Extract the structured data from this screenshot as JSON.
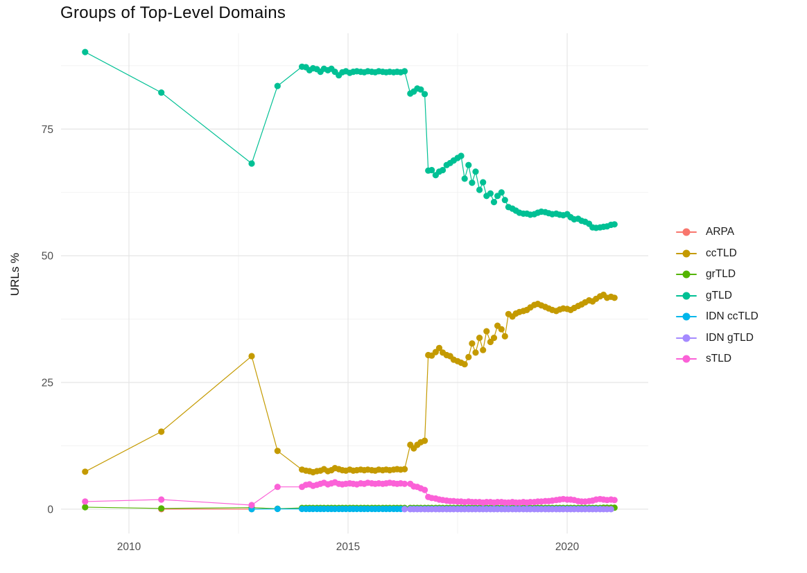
{
  "title": "Groups of Top-Level Domains",
  "chart_data": {
    "type": "line",
    "title": "Groups of Top-Level Domains",
    "xlabel": "",
    "ylabel": "URLs %",
    "xlim": [
      2008.45,
      2021.85
    ],
    "ylim": [
      -4.8,
      93.9
    ],
    "x_ticks": [
      {
        "v": 2010,
        "label": "2010"
      },
      {
        "v": 2015,
        "label": "2015"
      },
      {
        "v": 2020,
        "label": "2020"
      }
    ],
    "y_ticks": [
      {
        "v": 0,
        "label": "0"
      },
      {
        "v": 25,
        "label": "25"
      },
      {
        "v": 50,
        "label": "50"
      },
      {
        "v": 75,
        "label": "75"
      }
    ],
    "x_minor_ticks": [
      2012.5,
      2017.5
    ],
    "y_minor_ticks": [
      12.5,
      37.5,
      62.5,
      87.5
    ],
    "grid": "major+minor",
    "legend_position": "right",
    "x_common": [
      2009.0,
      2010.74,
      2012.8,
      2013.39,
      2013.95,
      2014.04,
      2014.12,
      2014.2,
      2014.29,
      2014.37,
      2014.45,
      2014.54,
      2014.62,
      2014.7,
      2014.79,
      2014.87,
      2014.95,
      2015.04,
      2015.12,
      2015.2,
      2015.29,
      2015.37,
      2015.45,
      2015.54,
      2015.62,
      2015.7,
      2015.79,
      2015.87,
      2015.95,
      2016.04,
      2016.12,
      2016.2,
      2016.29,
      2016.42,
      2016.5,
      2016.58,
      2016.66,
      2016.75,
      2016.83,
      2016.91,
      2017.0,
      2017.08,
      2017.16,
      2017.25,
      2017.33,
      2017.41,
      2017.5,
      2017.58,
      2017.66,
      2017.75,
      2017.83,
      2017.91,
      2018.0,
      2018.08,
      2018.16,
      2018.25,
      2018.33,
      2018.41,
      2018.5,
      2018.58,
      2018.66,
      2018.75,
      2018.83,
      2018.91,
      2019.0,
      2019.08,
      2019.16,
      2019.25,
      2019.33,
      2019.41,
      2019.5,
      2019.58,
      2019.66,
      2019.75,
      2019.83,
      2019.91,
      2020.0,
      2020.08,
      2020.16,
      2020.25,
      2020.33,
      2020.41,
      2020.5,
      2020.58,
      2020.66,
      2020.75,
      2020.83,
      2020.91,
      2021.0,
      2021.08
    ],
    "series": [
      {
        "name": "ARPA",
        "color": "#F8766D",
        "start_index": 1,
        "y": [
          0.0,
          0.0
        ]
      },
      {
        "name": "ccTLD",
        "color": "#C49A00",
        "start_index": 0,
        "y": [
          7.4,
          15.3,
          30.2,
          11.5,
          7.8,
          7.6,
          7.5,
          7.3,
          7.5,
          7.6,
          7.9,
          7.5,
          7.7,
          8.1,
          7.9,
          7.7,
          7.6,
          7.8,
          7.6,
          7.7,
          7.8,
          7.7,
          7.8,
          7.7,
          7.6,
          7.8,
          7.7,
          7.8,
          7.7,
          7.8,
          7.9,
          7.8,
          7.9,
          12.7,
          12.0,
          12.7,
          13.2,
          13.5,
          30.4,
          30.3,
          31.0,
          31.8,
          30.9,
          30.4,
          30.2,
          29.5,
          29.2,
          28.9,
          28.6,
          30.0,
          32.7,
          30.9,
          33.8,
          31.4,
          35.1,
          33.0,
          33.8,
          36.2,
          35.5,
          34.1,
          38.5,
          38.0,
          38.6,
          38.9,
          39.1,
          39.3,
          39.8,
          40.3,
          40.5,
          40.2,
          39.9,
          39.6,
          39.3,
          39.1,
          39.4,
          39.6,
          39.5,
          39.3,
          39.7,
          40.1,
          40.4,
          40.8,
          41.2,
          41.0,
          41.5,
          42.0,
          42.3,
          41.7,
          41.9,
          41.7
        ]
      },
      {
        "name": "grTLD",
        "color": "#53B400",
        "start_index": 0,
        "y": [
          0.4,
          0.15,
          0.3,
          0.1,
          0.25,
          0.25,
          0.25,
          0.25,
          0.25,
          0.25,
          0.25,
          0.25,
          0.25,
          0.25,
          0.25,
          0.25,
          0.25,
          0.25,
          0.25,
          0.25,
          0.25,
          0.25,
          0.25,
          0.25,
          0.25,
          0.25,
          0.25,
          0.25,
          0.25,
          0.25,
          0.25,
          0.25,
          0.25,
          0.25,
          0.25,
          0.25,
          0.25,
          0.25,
          0.25,
          0.25,
          0.25,
          0.25,
          0.25,
          0.25,
          0.25,
          0.25,
          0.25,
          0.25,
          0.25,
          0.25,
          0.25,
          0.25,
          0.25,
          0.25,
          0.25,
          0.25,
          0.25,
          0.25,
          0.25,
          0.25,
          0.25,
          0.25,
          0.25,
          0.25,
          0.25,
          0.25,
          0.25,
          0.25,
          0.25,
          0.25,
          0.25,
          0.25,
          0.25,
          0.25,
          0.25,
          0.25,
          0.25,
          0.25,
          0.25,
          0.25,
          0.25,
          0.25,
          0.25,
          0.25,
          0.25,
          0.25,
          0.3,
          0.3,
          0.3,
          0.3
        ]
      },
      {
        "name": "gTLD",
        "color": "#00C094",
        "start_index": 0,
        "y": [
          90.2,
          82.2,
          68.2,
          83.5,
          87.3,
          87.2,
          86.6,
          87.0,
          86.8,
          86.3,
          86.9,
          86.6,
          86.9,
          86.3,
          85.6,
          86.2,
          86.4,
          86.1,
          86.3,
          86.4,
          86.3,
          86.2,
          86.4,
          86.3,
          86.2,
          86.4,
          86.3,
          86.2,
          86.3,
          86.2,
          86.3,
          86.2,
          86.4,
          82.0,
          82.4,
          83.0,
          82.8,
          81.9,
          66.8,
          66.9,
          65.9,
          66.6,
          66.9,
          67.9,
          68.3,
          68.8,
          69.3,
          69.7,
          65.2,
          67.9,
          64.4,
          66.6,
          63.0,
          64.5,
          61.8,
          62.3,
          60.6,
          61.8,
          62.5,
          61.0,
          59.6,
          59.3,
          58.9,
          58.5,
          58.3,
          58.3,
          58.1,
          58.2,
          58.5,
          58.7,
          58.6,
          58.4,
          58.2,
          58.3,
          58.1,
          58.0,
          58.2,
          57.6,
          57.2,
          57.3,
          56.9,
          56.7,
          56.3,
          55.6,
          55.5,
          55.6,
          55.7,
          55.8,
          56.1,
          56.2
        ]
      },
      {
        "name": "IDN ccTLD",
        "color": "#00B6EB",
        "start_index": 2,
        "y": [
          0.0,
          0.05,
          0.05,
          0.05,
          0.05,
          0.05,
          0.05,
          0.05,
          0.05,
          0.05,
          0.05,
          0.05,
          0.05,
          0.05,
          0.05,
          0.05,
          0.05,
          0.05,
          0.05,
          0.05,
          0.05,
          0.05,
          0.05,
          0.05,
          0.05,
          0.05,
          0.05,
          0.05,
          0.05,
          0.05,
          0.05,
          0.05,
          0.05,
          0.05,
          0.05,
          0.05,
          0.05,
          0.05,
          0.05,
          0.05,
          0.05,
          0.05,
          0.05,
          0.05,
          0.05,
          0.05,
          0.05,
          0.05,
          0.05,
          0.05,
          0.05,
          0.05,
          0.05,
          0.05,
          0.05,
          0.05,
          0.05,
          0.05,
          0.05,
          0.05,
          0.05,
          0.05,
          0.05,
          0.05,
          0.05,
          0.05,
          0.05,
          0.05,
          0.05,
          0.05,
          0.05,
          0.05,
          0.05,
          0.05,
          0.05,
          0.05,
          0.05,
          0.05,
          0.05,
          0.05,
          0.05,
          0.05,
          0.05,
          0.05
        ]
      },
      {
        "name": "IDN gTLD",
        "color": "#A58AFF",
        "start_index": 32,
        "y": [
          0.0,
          0.0,
          0.0,
          0.0,
          0.0,
          0.0,
          0.0,
          0.0,
          0.0,
          0.0,
          0.0,
          0.0,
          0.0,
          0.0,
          0.0,
          0.0,
          0.0,
          0.0,
          0.0,
          0.0,
          0.0,
          0.0,
          0.0,
          0.0,
          0.0,
          0.0,
          0.0,
          0.0,
          0.0,
          0.0,
          0.0,
          0.0,
          0.0,
          0.0,
          0.0,
          0.0,
          0.0,
          0.0,
          0.0,
          0.0,
          0.0,
          0.0,
          0.0,
          0.0,
          0.0,
          0.0,
          0.0,
          0.0,
          0.0,
          0.0,
          0.0,
          0.0,
          0.0,
          0.0,
          0.0,
          0.0,
          0.0
        ]
      },
      {
        "name": "sTLD",
        "color": "#FB61D7",
        "start_index": 0,
        "y": [
          1.5,
          1.9,
          0.8,
          4.4,
          4.4,
          4.8,
          4.9,
          4.6,
          4.8,
          5.0,
          5.2,
          4.9,
          5.1,
          5.3,
          5.0,
          4.9,
          5.0,
          5.1,
          5.0,
          4.9,
          5.1,
          5.0,
          5.2,
          5.1,
          5.0,
          5.1,
          5.0,
          5.1,
          5.2,
          5.1,
          5.0,
          5.1,
          5.0,
          5.0,
          4.5,
          4.4,
          4.1,
          3.8,
          2.4,
          2.2,
          2.1,
          1.9,
          1.8,
          1.7,
          1.6,
          1.6,
          1.5,
          1.5,
          1.4,
          1.5,
          1.4,
          1.4,
          1.4,
          1.3,
          1.4,
          1.4,
          1.3,
          1.4,
          1.4,
          1.3,
          1.3,
          1.4,
          1.3,
          1.3,
          1.4,
          1.3,
          1.4,
          1.4,
          1.5,
          1.5,
          1.6,
          1.6,
          1.7,
          1.8,
          1.9,
          2.0,
          1.9,
          1.9,
          1.8,
          1.6,
          1.5,
          1.5,
          1.6,
          1.7,
          1.9,
          2.0,
          1.9,
          1.8,
          1.9,
          1.8
        ]
      }
    ]
  }
}
